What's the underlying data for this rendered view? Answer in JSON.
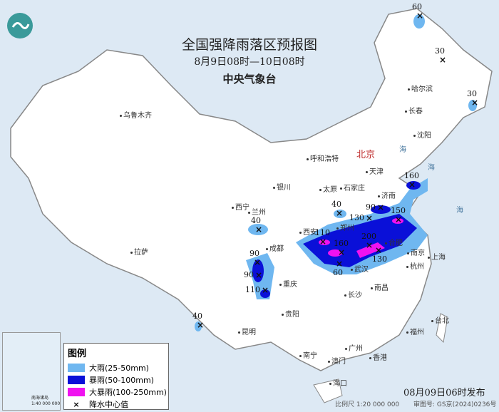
{
  "header": {
    "title": "全国强降雨落区预报图",
    "period": "8月9日08时—10日08时",
    "issuer": "中央气象台"
  },
  "legend": {
    "title": "图例",
    "items": [
      {
        "label": "大雨(25-50mm)",
        "color": "#6fb7f0"
      },
      {
        "label": "暴雨(50-100mm)",
        "color": "#0a10d8"
      },
      {
        "label": "大暴雨(100-250mm)",
        "color": "#f012f0"
      },
      {
        "label": "降水中心值",
        "icon": "x-mark-icon"
      }
    ]
  },
  "footer": {
    "issued": "08月09日06时发布",
    "scale": "比例尺 1:20 000 000",
    "map_no": "审图号: GS京(2024)0236号"
  },
  "inset": {
    "label": "南海诸岛",
    "scale": "1:40 000 000"
  },
  "capital": "北京",
  "cities": [
    "乌鲁木齐",
    "哈尔滨",
    "长春",
    "沈阳",
    "呼和浩特",
    "天津",
    "太原",
    "石家庄",
    "济南",
    "银川",
    "西宁",
    "兰州",
    "郑州",
    "西安",
    "合肥",
    "南京",
    "上海",
    "武汉",
    "杭州",
    "成都",
    "重庆",
    "长沙",
    "南昌",
    "拉萨",
    "贵阳",
    "昆明",
    "福州",
    "台北",
    "南宁",
    "广州",
    "香港",
    "澳门",
    "海口"
  ],
  "sea_labels": [
    "海",
    "海",
    "海"
  ],
  "centers": [
    "60",
    "30",
    "30",
    "40",
    "40",
    "130",
    "90",
    "160",
    "150",
    "110",
    "160",
    "200",
    "130",
    "60",
    "90",
    "90",
    "110",
    "40"
  ]
}
